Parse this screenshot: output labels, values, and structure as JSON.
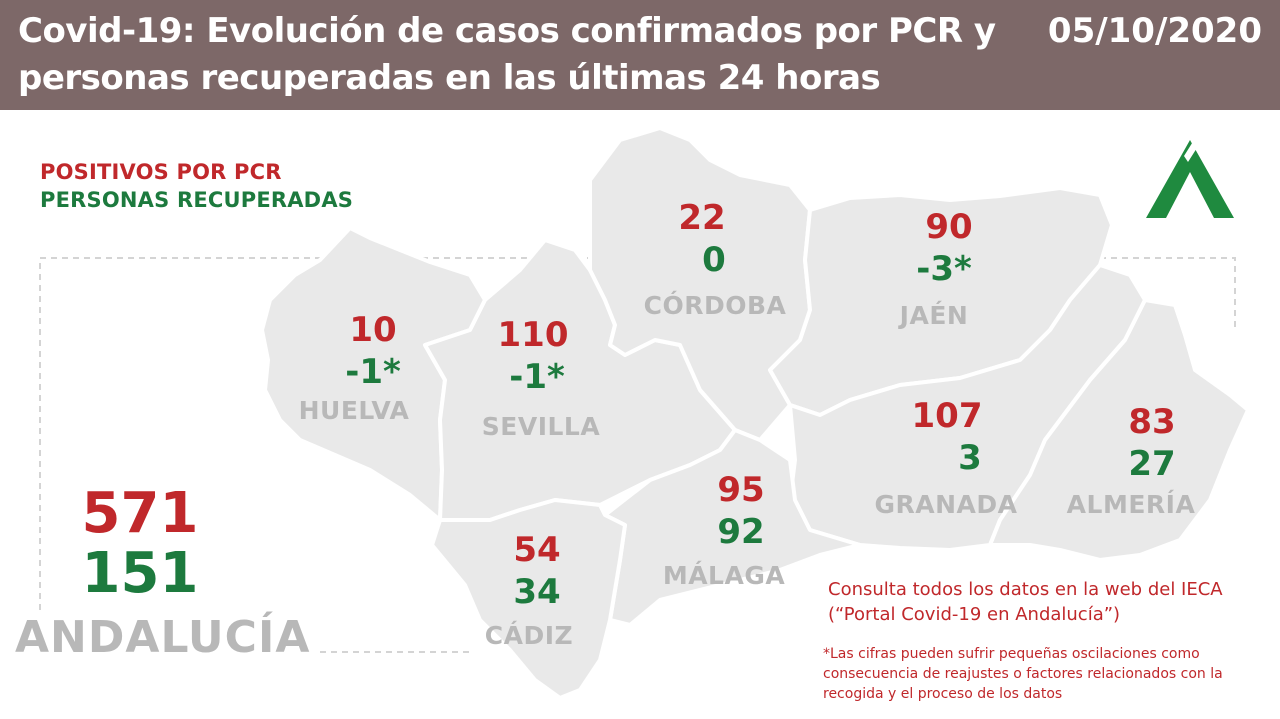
{
  "header": {
    "title": "Covid-19: Evolución de casos confirmados por PCR y personas recuperadas en las últimas 24 horas",
    "date": "05/10/2020"
  },
  "legend": {
    "positives": "POSITIVOS POR PCR",
    "recovered": "PERSONAS RECUPERADAS"
  },
  "provinces": {
    "huelva": {
      "name": "HUELVA",
      "positives": "10",
      "recovered": "-1*"
    },
    "sevilla": {
      "name": "SEVILLA",
      "positives": "110",
      "recovered": "-1*"
    },
    "cordoba": {
      "name": "CÓRDOBA",
      "positives": "22",
      "recovered": "0"
    },
    "jaen": {
      "name": "JAÉN",
      "positives": "90",
      "recovered": "-3*"
    },
    "granada": {
      "name": "GRANADA",
      "positives": "107",
      "recovered": "3"
    },
    "almeria": {
      "name": "ALMERÍA",
      "positives": "83",
      "recovered": "27"
    },
    "malaga": {
      "name": "MÁLAGA",
      "positives": "95",
      "recovered": "92"
    },
    "cadiz": {
      "name": "CÁDIZ",
      "positives": "54",
      "recovered": "34"
    }
  },
  "total": {
    "name": "ANDALUCÍA",
    "positives": "571",
    "recovered": "151"
  },
  "consulta": "Consulta todos los datos en la web del IECA (“Portal Covid-19 en Andalucía”)",
  "footnote": "*Las cifras pueden sufrir pequeñas oscilaciones como consecuencia de reajustes o factores relacionados con la recogida y el proceso de los datos",
  "colors": {
    "header": "#7d6868",
    "positives": "#c0282b",
    "recovered": "#1d7a3e",
    "map_fill": "#e9e9e9",
    "labels": "#b8b8b8"
  }
}
